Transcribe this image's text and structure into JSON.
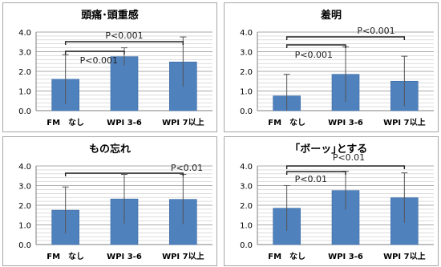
{
  "chart_data": [
    {
      "type": "bar",
      "title": "頭痛･頭重感",
      "categories": [
        "FM　なし",
        "WPI 3-6",
        "WPI 7以上"
      ],
      "values": [
        1.6,
        2.75,
        2.48
      ],
      "error": [
        1.25,
        0.45,
        1.27
      ],
      "ylim": [
        0,
        4
      ],
      "yticks": [
        "0.0",
        "1.0",
        "2.0",
        "3.0",
        "4.0"
      ],
      "grid": true,
      "significance": [
        {
          "from": 0,
          "to": 1,
          "label": "P<0.001"
        },
        {
          "from": 0,
          "to": 2,
          "label": "P<0.001"
        }
      ]
    },
    {
      "type": "bar",
      "title": "羞明",
      "categories": [
        "FM　なし",
        "WPI 3-6",
        "WPI 7以上"
      ],
      "values": [
        0.75,
        1.85,
        1.5
      ],
      "error": [
        1.1,
        1.4,
        1.27
      ],
      "ylim": [
        0,
        4
      ],
      "yticks": [
        "0.0",
        "1.0",
        "2.0",
        "3.0",
        "4.0"
      ],
      "grid": true,
      "significance": [
        {
          "from": 0,
          "to": 1,
          "label": "P<0.001"
        },
        {
          "from": 0,
          "to": 2,
          "label": "P<0.001"
        }
      ]
    },
    {
      "type": "bar",
      "title": "もの忘れ",
      "categories": [
        "FM　なし",
        "WPI 3-6",
        "WPI 7以上"
      ],
      "values": [
        1.75,
        2.32,
        2.3
      ],
      "error": [
        1.18,
        1.25,
        1.27
      ],
      "ylim": [
        0,
        4
      ],
      "yticks": [
        "0.0",
        "1.0",
        "2.0",
        "3.0",
        "4.0"
      ],
      "grid": true,
      "significance": [
        {
          "from": 0,
          "to": 2,
          "label": "P<0.01"
        }
      ]
    },
    {
      "type": "bar",
      "title": "｢ボーッ｣とする",
      "categories": [
        "FM　なし",
        "WPI 3-6",
        "WPI 7以上"
      ],
      "values": [
        1.85,
        2.75,
        2.38
      ],
      "error": [
        1.15,
        0.98,
        1.27
      ],
      "ylim": [
        0,
        4
      ],
      "yticks": [
        "0.0",
        "1.0",
        "2.0",
        "3.0",
        "4.0"
      ],
      "grid": true,
      "significance": [
        {
          "from": 0,
          "to": 1,
          "label": "P<0.01"
        },
        {
          "from": 0,
          "to": 2,
          "label": "P<0.01"
        }
      ]
    }
  ],
  "colors": {
    "bar": "#4f81bd",
    "bar_edge": "#3a6aa3",
    "grid": "#c8c8c8",
    "axis": "#7f7f7f",
    "panel_border": "#a6a6a6",
    "text": "#000000"
  }
}
